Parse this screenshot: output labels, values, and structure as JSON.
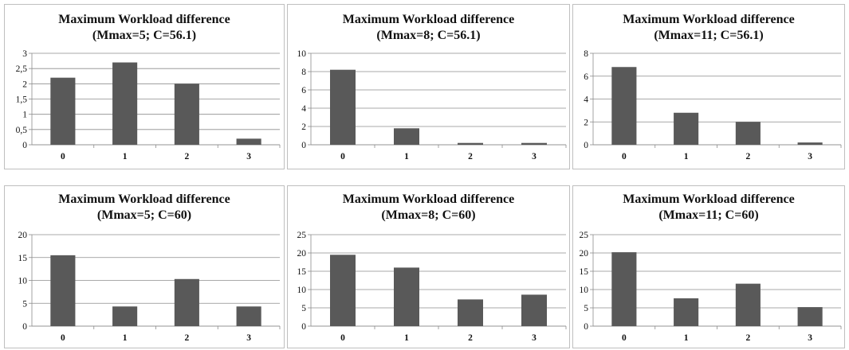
{
  "chart_data": [
    {
      "type": "bar",
      "title": "Maximum Workload difference",
      "subtitle": "(Mmax=5; C=56.1)",
      "categories": [
        "0",
        "1",
        "2",
        "3"
      ],
      "values": [
        2.2,
        2.7,
        2.0,
        0.2
      ],
      "ylim": [
        0,
        3
      ],
      "yticks": [
        "0",
        "0,5",
        "1",
        "1,5",
        "2",
        "2,5",
        "3"
      ],
      "ytick_values": [
        0,
        0.5,
        1,
        1.5,
        2,
        2.5,
        3
      ],
      "grid": true,
      "color": "#595959"
    },
    {
      "type": "bar",
      "title": "Maximum Workload difference",
      "subtitle": "(Mmax=8; C=56.1)",
      "categories": [
        "0",
        "1",
        "2",
        "3"
      ],
      "values": [
        8.2,
        1.8,
        0.2,
        0.2
      ],
      "ylim": [
        0,
        10
      ],
      "yticks": [
        "0",
        "2",
        "4",
        "6",
        "8",
        "10"
      ],
      "ytick_values": [
        0,
        2,
        4,
        6,
        8,
        10
      ],
      "grid": true,
      "color": "#595959"
    },
    {
      "type": "bar",
      "title": "Maximum Workload difference",
      "subtitle": "(Mmax=11; C=56.1)",
      "categories": [
        "0",
        "1",
        "2",
        "3"
      ],
      "values": [
        6.8,
        2.8,
        2.0,
        0.2
      ],
      "ylim": [
        0,
        8
      ],
      "yticks": [
        "0",
        "2",
        "4",
        "6",
        "8"
      ],
      "ytick_values": [
        0,
        2,
        4,
        6,
        8
      ],
      "grid": true,
      "color": "#595959"
    },
    {
      "type": "bar",
      "title": "Maximum Workload difference",
      "subtitle": "(Mmax=5; C=60)",
      "categories": [
        "0",
        "1",
        "2",
        "3"
      ],
      "values": [
        15.5,
        4.3,
        10.3,
        4.3
      ],
      "ylim": [
        0,
        20
      ],
      "yticks": [
        "0",
        "5",
        "10",
        "15",
        "20"
      ],
      "ytick_values": [
        0,
        5,
        10,
        15,
        20
      ],
      "grid": true,
      "color": "#595959"
    },
    {
      "type": "bar",
      "title": "Maximum Workload difference",
      "subtitle": "(Mmax=8; C=60)",
      "categories": [
        "0",
        "1",
        "2",
        "3"
      ],
      "values": [
        19.5,
        16.0,
        7.3,
        8.6
      ],
      "ylim": [
        0,
        25
      ],
      "yticks": [
        "0",
        "5",
        "10",
        "15",
        "20",
        "25"
      ],
      "ytick_values": [
        0,
        5,
        10,
        15,
        20,
        25
      ],
      "grid": true,
      "color": "#595959"
    },
    {
      "type": "bar",
      "title": "Maximum Workload difference",
      "subtitle": "(Mmax=11; C=60)",
      "categories": [
        "0",
        "1",
        "2",
        "3"
      ],
      "values": [
        20.2,
        7.6,
        11.6,
        5.2
      ],
      "ylim": [
        0,
        25
      ],
      "yticks": [
        "0",
        "5",
        "10",
        "15",
        "20",
        "25"
      ],
      "ytick_values": [
        0,
        5,
        10,
        15,
        20,
        25
      ],
      "grid": true,
      "color": "#595959"
    }
  ]
}
